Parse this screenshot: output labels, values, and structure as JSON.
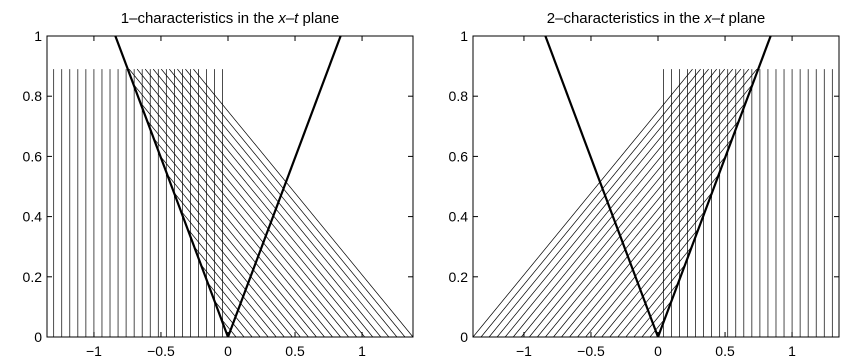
{
  "chart_data": [
    {
      "type": "line",
      "title_prefix": "1–characteristics in the ",
      "title_var": "x–t",
      "title_suffix": " plane",
      "xlim": [
        -1.35,
        1.38
      ],
      "ylim": [
        0,
        1
      ],
      "xticks": [
        -1,
        -0.5,
        0,
        0.5,
        1
      ],
      "xtick_labels": [
        "−1",
        "−0.5",
        "0",
        "0.5",
        "1"
      ],
      "yticks": [
        0,
        0.2,
        0.4,
        0.6,
        0.8,
        1
      ],
      "ytick_labels": [
        "0",
        "0.2",
        "0.4",
        "0.6",
        "0.8",
        "1"
      ],
      "grid": false,
      "t_max_characteristics": 0.89,
      "boundary_lines": [
        {
          "x": [
            0,
            -0.84
          ],
          "y": [
            0,
            1
          ]
        },
        {
          "x": [
            0,
            0.84
          ],
          "y": [
            0,
            1
          ]
        }
      ],
      "vertical_characteristics_x": [
        -1.3,
        -1.24,
        -1.18,
        -1.12,
        -1.06,
        -1.0,
        -0.94,
        -0.88,
        -0.82,
        -0.76,
        -0.7,
        -0.64,
        -0.58,
        -0.52,
        -0.46,
        -0.4,
        -0.34,
        -0.28,
        -0.22,
        -0.16,
        -0.1,
        -0.04
      ],
      "inclined_characteristics": {
        "speed_dx_dt": -1.84,
        "x_at_t0": [
          0.0,
          0.06,
          0.12,
          0.18,
          0.24,
          0.3,
          0.36,
          0.42,
          0.48,
          0.54,
          0.6,
          0.66,
          0.72,
          0.78,
          0.84,
          0.9,
          0.96,
          1.02,
          1.08,
          1.14,
          1.2,
          1.26,
          1.32,
          1.38
        ],
        "clip_left_at_boundary": true
      }
    },
    {
      "type": "line",
      "title_prefix": "2–characteristics in the ",
      "title_var": "x–t",
      "title_suffix": " plane",
      "xlim": [
        -1.38,
        1.35
      ],
      "ylim": [
        0,
        1
      ],
      "xticks": [
        -1,
        -0.5,
        0,
        0.5,
        1
      ],
      "xtick_labels": [
        "−1",
        "−0.5",
        "0",
        "0.5",
        "1"
      ],
      "yticks": [
        0,
        0.2,
        0.4,
        0.6,
        0.8,
        1
      ],
      "ytick_labels": [
        "0",
        "0.2",
        "0.4",
        "0.6",
        "0.8",
        "1"
      ],
      "grid": false,
      "t_max_characteristics": 0.89,
      "boundary_lines": [
        {
          "x": [
            0,
            -0.84
          ],
          "y": [
            0,
            1
          ]
        },
        {
          "x": [
            0,
            0.84
          ],
          "y": [
            0,
            1
          ]
        }
      ],
      "vertical_characteristics_x": [
        0.04,
        0.1,
        0.16,
        0.22,
        0.28,
        0.34,
        0.4,
        0.46,
        0.52,
        0.58,
        0.64,
        0.7,
        0.76,
        0.82,
        0.88,
        0.94,
        1.0,
        1.06,
        1.12,
        1.18,
        1.24,
        1.3
      ],
      "inclined_characteristics": {
        "speed_dx_dt": 1.84,
        "x_at_t0": [
          0.0,
          -0.06,
          -0.12,
          -0.18,
          -0.24,
          -0.3,
          -0.36,
          -0.42,
          -0.48,
          -0.54,
          -0.6,
          -0.66,
          -0.72,
          -0.78,
          -0.84,
          -0.9,
          -0.96,
          -1.02,
          -1.08,
          -1.14,
          -1.2,
          -1.26,
          -1.32,
          -1.38
        ],
        "clip_right_at_boundary": true
      }
    }
  ]
}
